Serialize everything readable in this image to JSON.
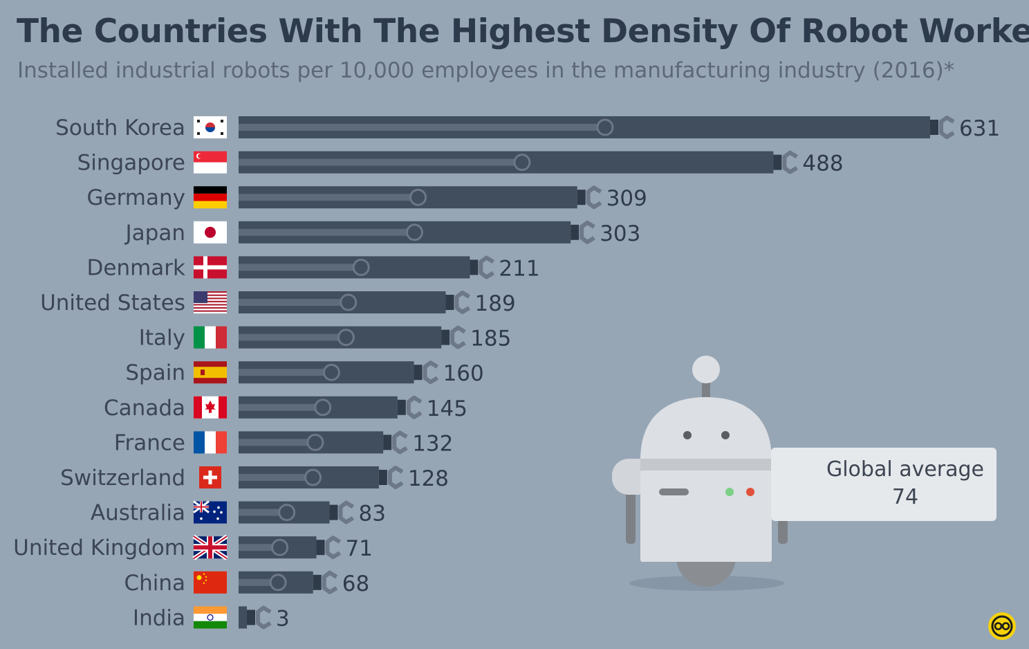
{
  "header": {
    "title": "The Countries With The Highest Density Of Robot Workers",
    "subtitle": "Installed industrial robots per 10,000 employees in the manufacturing industry (2016)*"
  },
  "chart_data": {
    "type": "bar",
    "orientation": "horizontal",
    "title": "The Countries With The Highest Density Of Robot Workers",
    "subtitle": "Installed industrial robots per 10,000 employees in the manufacturing industry (2016)*",
    "categories": [
      "South Korea",
      "Singapore",
      "Germany",
      "Japan",
      "Denmark",
      "United States",
      "Italy",
      "Spain",
      "Canada",
      "France",
      "Switzerland",
      "Australia",
      "United Kingdom",
      "China",
      "India"
    ],
    "values": [
      631,
      488,
      309,
      303,
      211,
      189,
      185,
      160,
      145,
      132,
      128,
      83,
      71,
      68,
      3
    ],
    "flags": [
      "south-korea",
      "singapore",
      "germany",
      "japan",
      "denmark",
      "united-states",
      "italy",
      "spain",
      "canada",
      "france",
      "switzerland",
      "australia",
      "united-kingdom",
      "china",
      "india"
    ],
    "bar_color": "#404e5e",
    "xlim": [
      0,
      631
    ],
    "grid": false,
    "legend": "none"
  },
  "annotation": {
    "label": "Global average",
    "value": "74"
  },
  "colors": {
    "background": "#97a6b5",
    "bar": "#404e5e",
    "title": "#2c3a4c",
    "robot_body": "#dcdfe3",
    "callout": "#e6e9ec",
    "logo": "#f5d20a"
  }
}
